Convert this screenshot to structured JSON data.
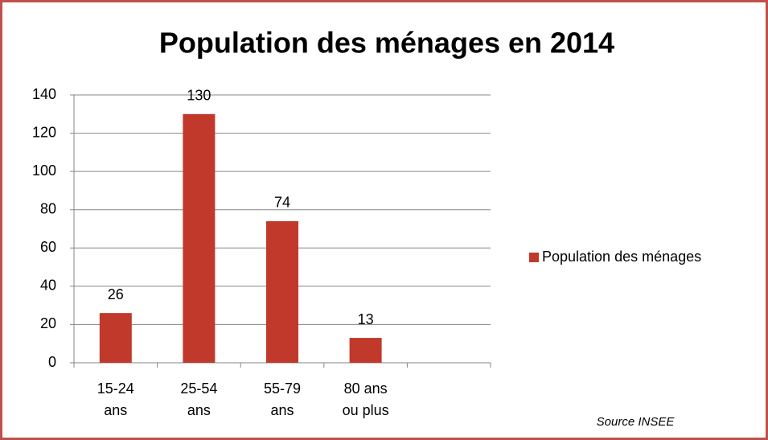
{
  "chart_data": {
    "type": "bar",
    "title": "Population des ménages en 2014",
    "categories": [
      "15-24 ans",
      "25-54 ans",
      "55-79 ans",
      "80 ans ou plus",
      null
    ],
    "series": [
      {
        "name": "Population des ménages",
        "color": "#c0392b",
        "values": [
          26,
          130,
          74,
          13,
          null
        ]
      }
    ],
    "ylim": [
      0,
      140
    ],
    "yticks": [
      0,
      20,
      40,
      60,
      80,
      100,
      120,
      140
    ],
    "grid": true,
    "legend": "right",
    "source": "Source INSEE"
  }
}
